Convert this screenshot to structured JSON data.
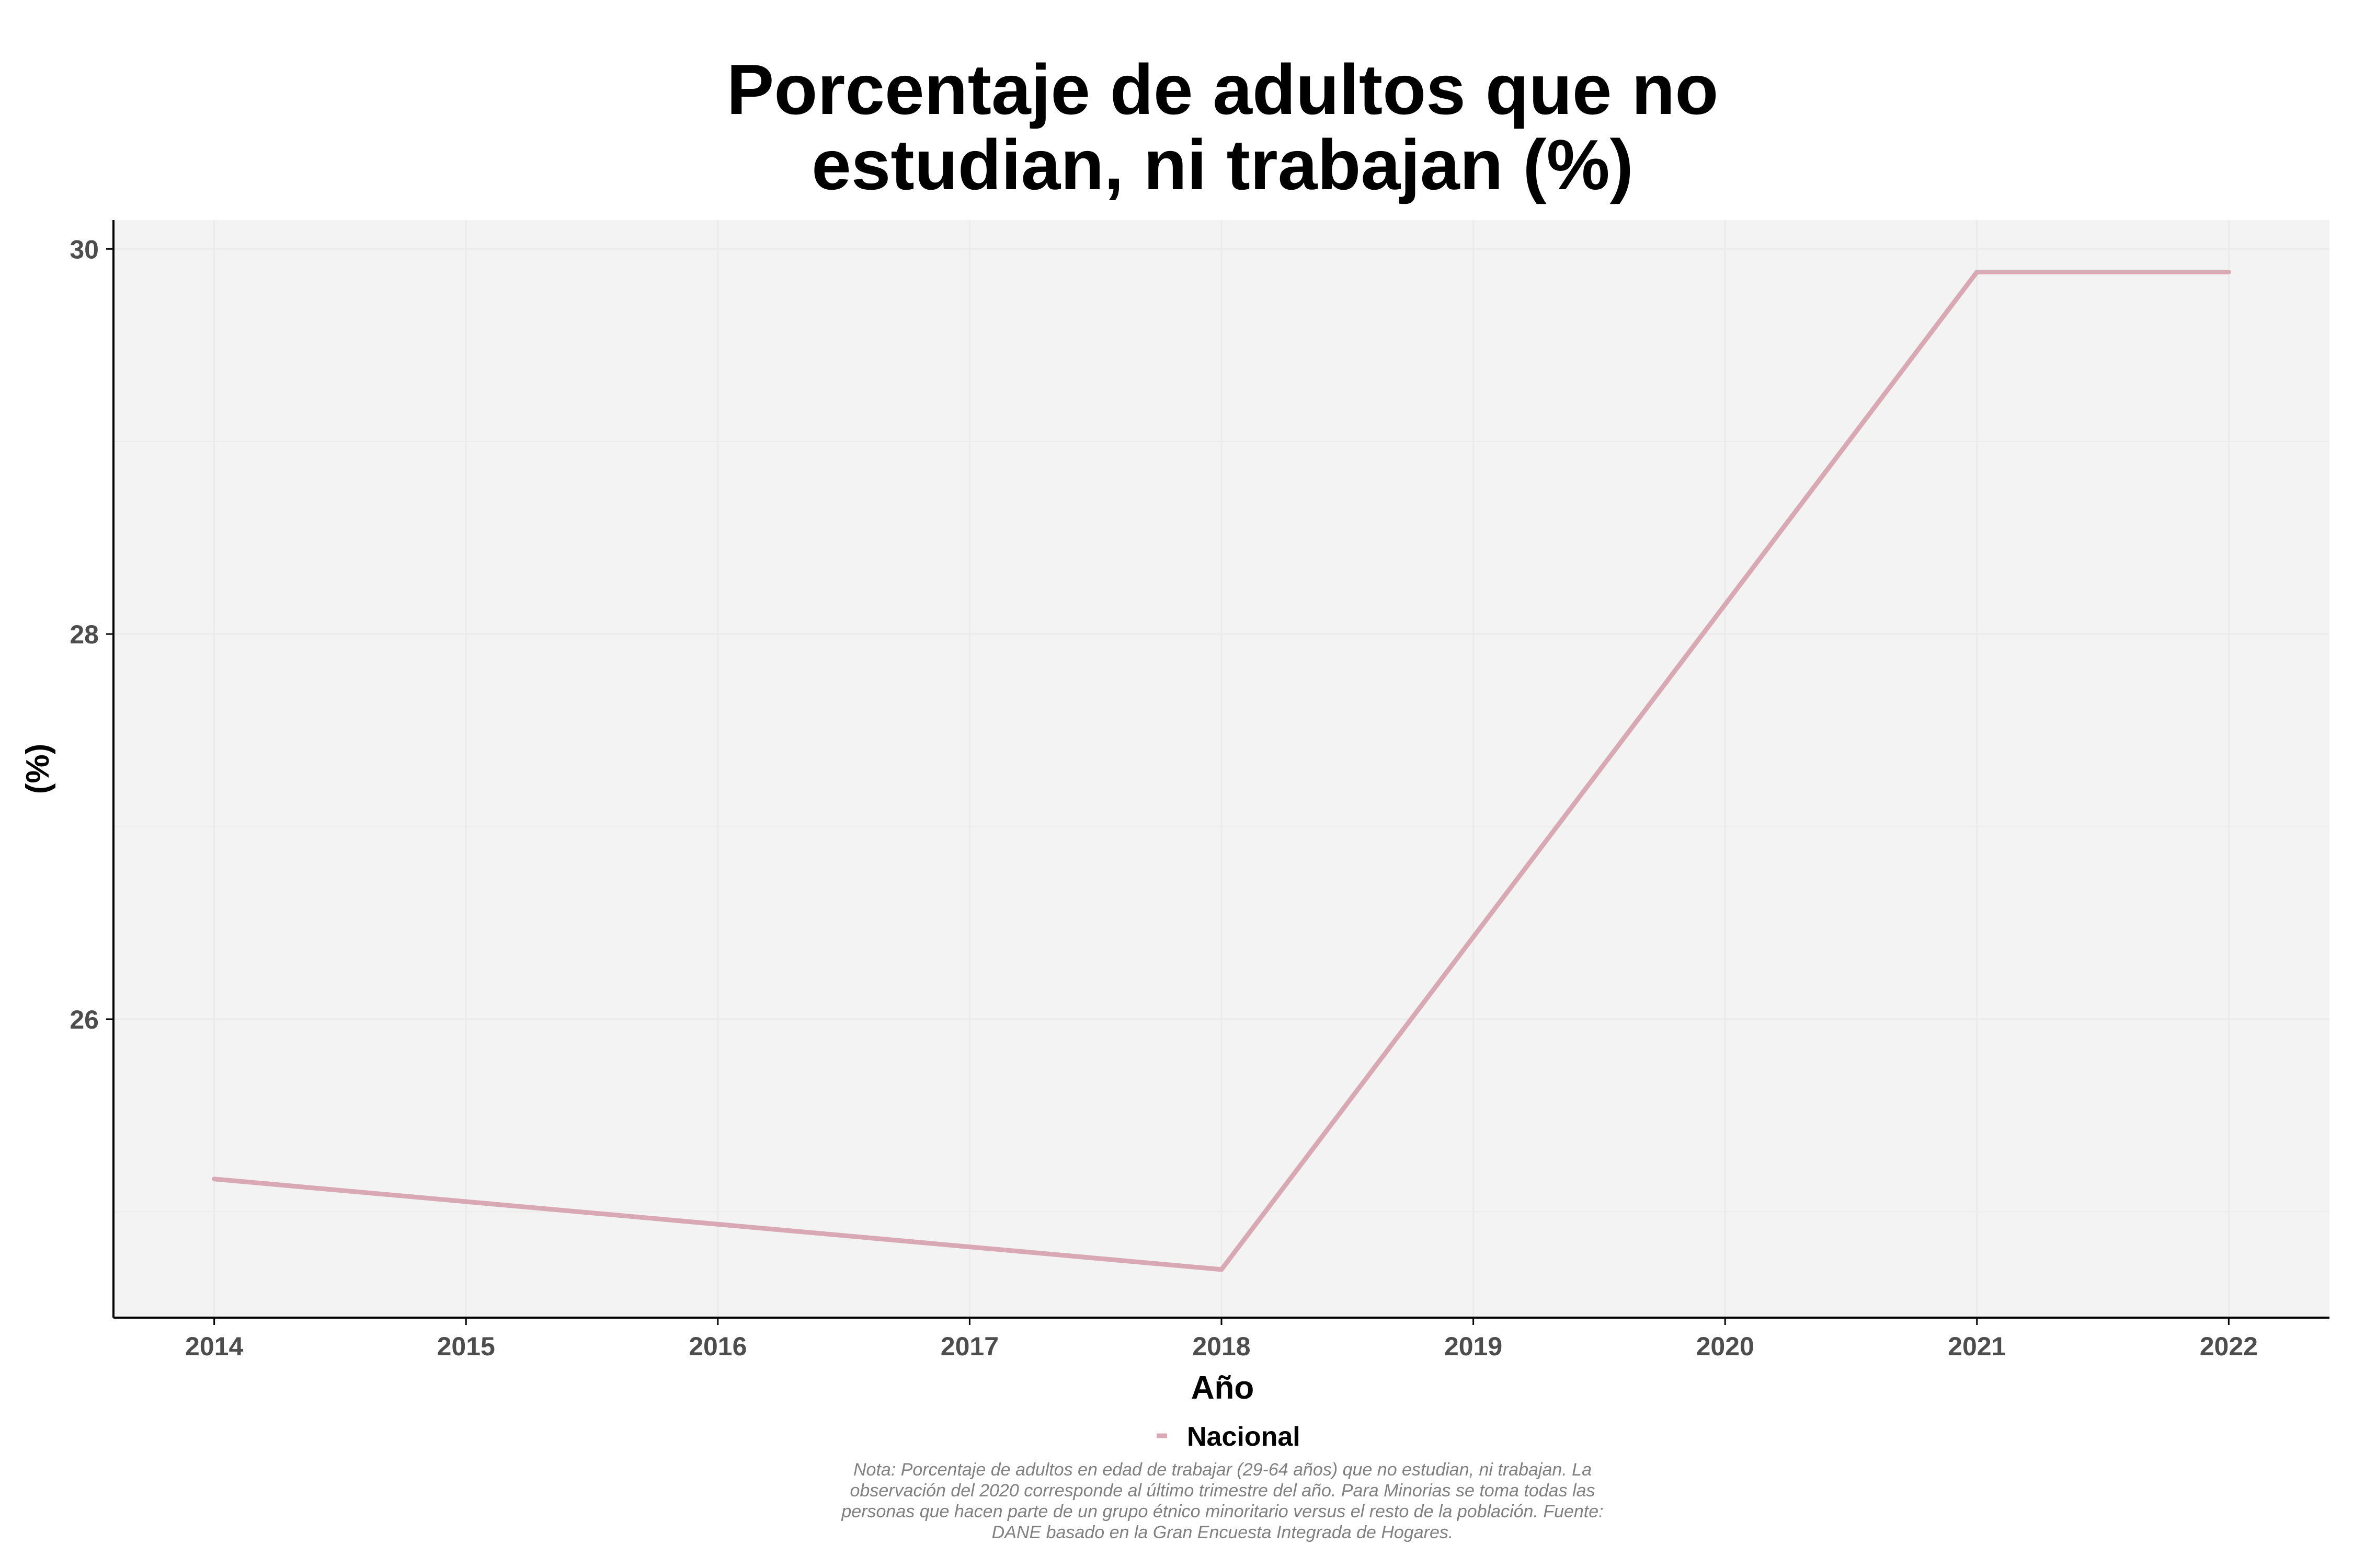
{
  "chart_data": {
    "type": "line",
    "title": "Porcentaje de adultos que no estudian, ni trabajan (%)",
    "title_lines": [
      "Porcentaje de adultos que no",
      "estudian, ni trabajan (%)"
    ],
    "xlabel": "Año",
    "ylabel": "(%)",
    "x": [
      2014,
      2018,
      2021,
      2022
    ],
    "x_ticks": [
      "2014",
      "2015",
      "2016",
      "2017",
      "2018",
      "2019",
      "2020",
      "2021",
      "2022"
    ],
    "y_ticks": [
      "26",
      "28",
      "30"
    ],
    "xlim": [
      2013.6,
      2022.4
    ],
    "ylim": [
      24.45,
      30.15
    ],
    "grid": true,
    "legend_position": "bottom",
    "series": [
      {
        "name": "Nacional",
        "color": "#d8a9b5",
        "values": [
          25.17,
          24.7,
          29.88,
          29.88
        ]
      }
    ],
    "note_lines": [
      "Nota: Porcentaje de adultos en edad de trabajar (29-64 años) que no estudian, ni trabajan. La",
      "observación del 2020 corresponde al último trimestre del año. Para Minorias se toma todas las",
      "personas que hacen parte de un grupo étnico minoritario versus el resto de la población. Fuente:",
      "DANE basado en la Gran Encuesta Integrada de Hogares."
    ]
  },
  "colors": {
    "panel_background": "#f3f3f3",
    "grid": "#ebebeb",
    "axis": "#000000"
  }
}
